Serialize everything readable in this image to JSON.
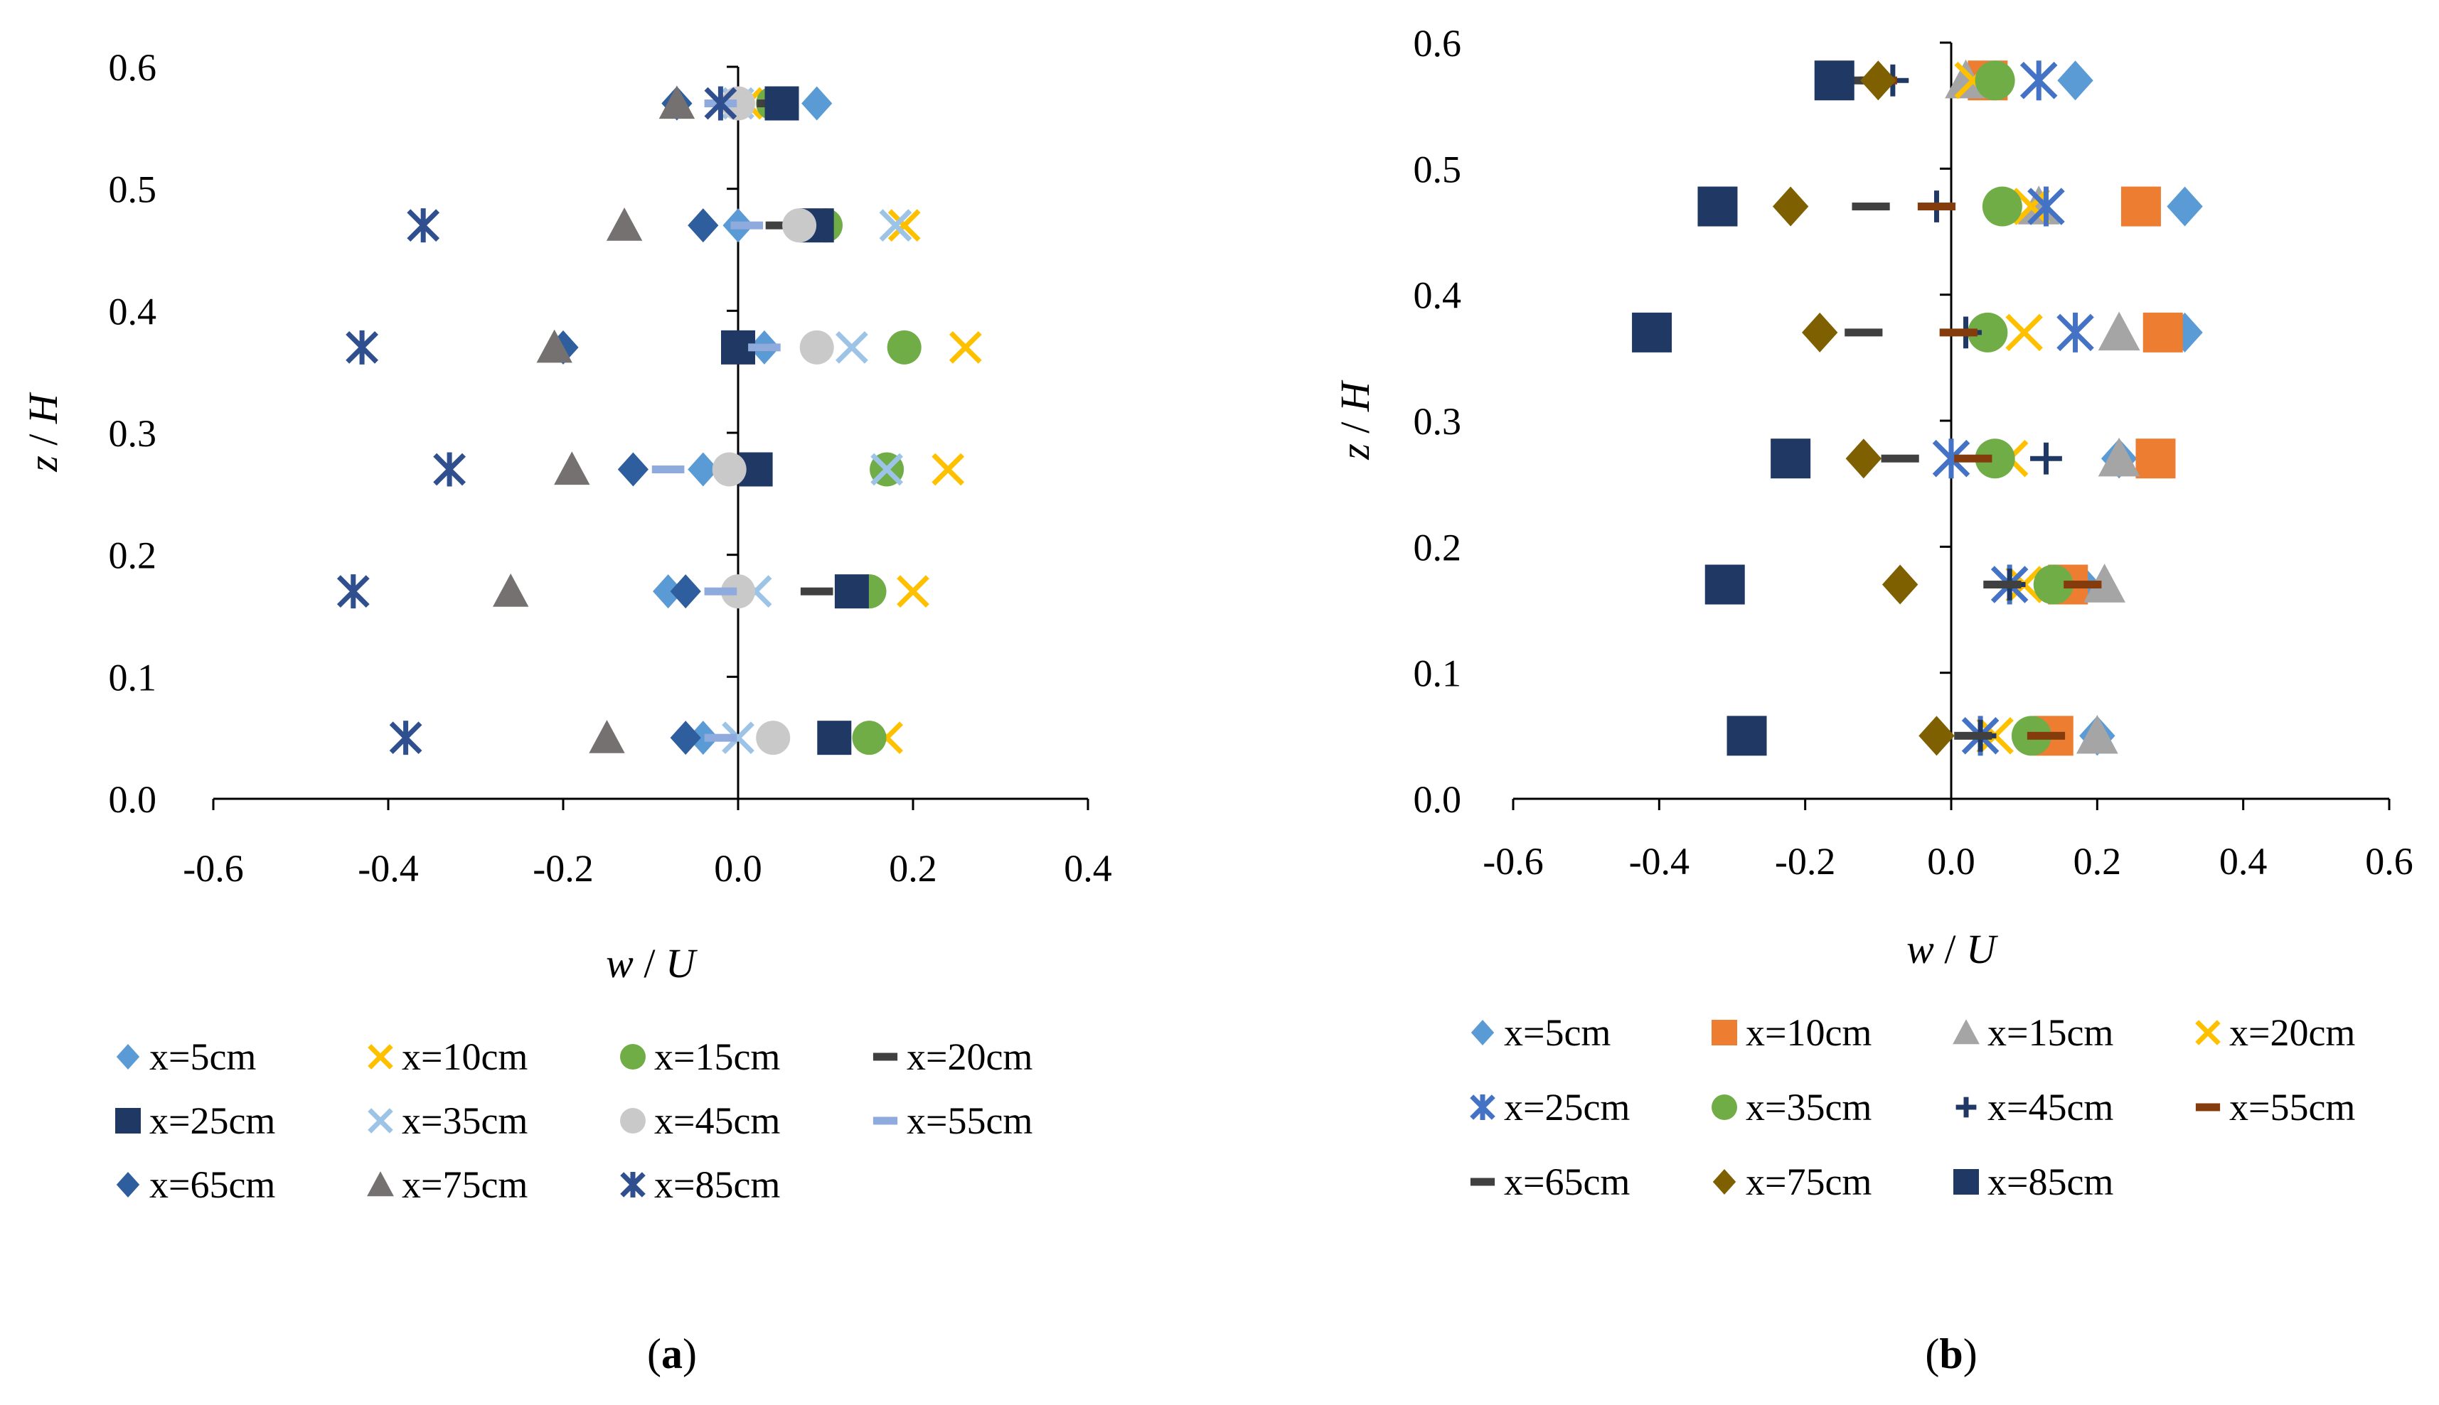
{
  "chart_data": [
    {
      "type": "scatter",
      "panel": "a",
      "panel_label": "a",
      "xlabel_var": "w",
      "xlabel_den": "U",
      "ylabel_var": "z",
      "ylabel_den": "H",
      "xlim": [
        -0.6,
        0.4
      ],
      "ylim": [
        0.0,
        0.6
      ],
      "xticks": [
        "-0.6",
        "-0.4",
        "-0.2",
        "0.0",
        "0.2",
        "0.4"
      ],
      "yticks": [
        "0.0",
        "0.1",
        "0.2",
        "0.3",
        "0.4",
        "0.5",
        "0.6"
      ],
      "legend_position": "bottom",
      "legend_columns": 4,
      "series": [
        {
          "name": "x=5cm",
          "marker": "diamond",
          "color": "#5B9BD5",
          "points": [
            [
              -0.04,
              0.05
            ],
            [
              -0.08,
              0.17
            ],
            [
              -0.04,
              0.27
            ],
            [
              0.03,
              0.37
            ],
            [
              0.0,
              0.47
            ],
            [
              0.09,
              0.57
            ]
          ]
        },
        {
          "name": "x=10cm",
          "marker": "x",
          "color": "#FFC000",
          "points": [
            [
              0.17,
              0.05
            ],
            [
              0.2,
              0.17
            ],
            [
              0.24,
              0.27
            ],
            [
              0.26,
              0.37
            ],
            [
              0.19,
              0.47
            ],
            [
              0.01,
              0.57
            ]
          ]
        },
        {
          "name": "x=15cm",
          "marker": "circle",
          "color": "#70AD47",
          "points": [
            [
              0.15,
              0.05
            ],
            [
              0.15,
              0.17
            ],
            [
              0.17,
              0.27
            ],
            [
              0.19,
              0.37
            ],
            [
              0.1,
              0.47
            ],
            [
              0.04,
              0.57
            ]
          ]
        },
        {
          "name": "x=20cm",
          "marker": "dash",
          "color": "#404040",
          "points": [
            [
              0.11,
              0.05
            ],
            [
              0.09,
              0.17
            ],
            [
              0.02,
              0.27
            ],
            [
              0.02,
              0.37
            ],
            [
              0.05,
              0.47
            ],
            [
              0.04,
              0.57
            ]
          ]
        },
        {
          "name": "x=25cm",
          "marker": "square",
          "color": "#203864",
          "points": [
            [
              0.11,
              0.05
            ],
            [
              0.13,
              0.17
            ],
            [
              0.02,
              0.27
            ],
            [
              0.0,
              0.37
            ],
            [
              0.09,
              0.47
            ],
            [
              0.05,
              0.57
            ]
          ]
        },
        {
          "name": "x=35cm",
          "marker": "x",
          "color": "#9DC3E6",
          "points": [
            [
              0.0,
              0.05
            ],
            [
              0.02,
              0.17
            ],
            [
              0.17,
              0.27
            ],
            [
              0.13,
              0.37
            ],
            [
              0.18,
              0.47
            ],
            [
              0.0,
              0.57
            ]
          ]
        },
        {
          "name": "x=45cm",
          "marker": "circle",
          "color": "#C9C9C9",
          "points": [
            [
              0.04,
              0.05
            ],
            [
              0.0,
              0.17
            ],
            [
              -0.01,
              0.27
            ],
            [
              0.09,
              0.37
            ],
            [
              0.07,
              0.47
            ],
            [
              0.0,
              0.57
            ]
          ]
        },
        {
          "name": "x=55cm",
          "marker": "dash",
          "color": "#8FAADC",
          "points": [
            [
              -0.02,
              0.05
            ],
            [
              -0.02,
              0.17
            ],
            [
              -0.08,
              0.27
            ],
            [
              0.03,
              0.37
            ],
            [
              0.01,
              0.47
            ],
            [
              -0.02,
              0.57
            ]
          ]
        },
        {
          "name": "x=65cm",
          "marker": "diamond",
          "color": "#2E5E9E",
          "points": [
            [
              -0.06,
              0.05
            ],
            [
              -0.06,
              0.17
            ],
            [
              -0.12,
              0.27
            ],
            [
              -0.2,
              0.37
            ],
            [
              -0.04,
              0.47
            ],
            [
              -0.07,
              0.57
            ]
          ]
        },
        {
          "name": "x=75cm",
          "marker": "triangle",
          "color": "#767171",
          "points": [
            [
              -0.15,
              0.05
            ],
            [
              -0.26,
              0.17
            ],
            [
              -0.19,
              0.27
            ],
            [
              -0.21,
              0.37
            ],
            [
              -0.13,
              0.47
            ],
            [
              -0.07,
              0.57
            ]
          ]
        },
        {
          "name": "x=85cm",
          "marker": "asterisk",
          "color": "#2F4F8F",
          "points": [
            [
              -0.38,
              0.05
            ],
            [
              -0.44,
              0.17
            ],
            [
              -0.33,
              0.27
            ],
            [
              -0.43,
              0.37
            ],
            [
              -0.36,
              0.47
            ],
            [
              -0.02,
              0.57
            ]
          ]
        }
      ]
    },
    {
      "type": "scatter",
      "panel": "b",
      "panel_label": "b",
      "xlabel_var": "w",
      "xlabel_den": "U",
      "ylabel_var": "z",
      "ylabel_den": "H",
      "xlim": [
        -0.6,
        0.6
      ],
      "ylim": [
        0.0,
        0.6
      ],
      "xticks": [
        "-0.6",
        "-0.4",
        "-0.2",
        "0.0",
        "0.2",
        "0.4",
        "0.6"
      ],
      "yticks": [
        "0.0",
        "0.1",
        "0.2",
        "0.3",
        "0.4",
        "0.5",
        "0.6"
      ],
      "legend_position": "bottom",
      "legend_columns": 4,
      "series": [
        {
          "name": "x=5cm",
          "marker": "diamond",
          "color": "#5B9BD5",
          "points": [
            [
              0.2,
              0.05
            ],
            [
              0.18,
              0.17
            ],
            [
              0.23,
              0.27
            ],
            [
              0.32,
              0.37
            ],
            [
              0.32,
              0.47
            ],
            [
              0.17,
              0.57
            ]
          ]
        },
        {
          "name": "x=10cm",
          "marker": "square",
          "color": "#ED7D31",
          "points": [
            [
              0.14,
              0.05
            ],
            [
              0.16,
              0.17
            ],
            [
              0.28,
              0.27
            ],
            [
              0.29,
              0.37
            ],
            [
              0.26,
              0.47
            ],
            [
              0.05,
              0.57
            ]
          ]
        },
        {
          "name": "x=15cm",
          "marker": "triangle",
          "color": "#A5A5A5",
          "points": [
            [
              0.2,
              0.05
            ],
            [
              0.21,
              0.17
            ],
            [
              0.23,
              0.27
            ],
            [
              0.23,
              0.37
            ],
            [
              0.12,
              0.47
            ],
            [
              0.02,
              0.57
            ]
          ]
        },
        {
          "name": "x=20cm",
          "marker": "x",
          "color": "#FFC000",
          "points": [
            [
              0.06,
              0.05
            ],
            [
              0.1,
              0.17
            ],
            [
              0.08,
              0.27
            ],
            [
              0.1,
              0.37
            ],
            [
              0.11,
              0.47
            ],
            [
              0.03,
              0.57
            ]
          ]
        },
        {
          "name": "x=25cm",
          "marker": "asterisk",
          "color": "#4472C4",
          "points": [
            [
              0.04,
              0.05
            ],
            [
              0.08,
              0.17
            ],
            [
              0.0,
              0.27
            ],
            [
              0.17,
              0.37
            ],
            [
              0.13,
              0.47
            ],
            [
              0.12,
              0.57
            ]
          ]
        },
        {
          "name": "x=35cm",
          "marker": "circle",
          "color": "#70AD47",
          "points": [
            [
              0.11,
              0.05
            ],
            [
              0.14,
              0.17
            ],
            [
              0.06,
              0.27
            ],
            [
              0.05,
              0.37
            ],
            [
              0.07,
              0.47
            ],
            [
              0.06,
              0.57
            ]
          ]
        },
        {
          "name": "x=45cm",
          "marker": "plus",
          "color": "#1F3864",
          "points": [
            [
              0.04,
              0.05
            ],
            [
              0.08,
              0.17
            ],
            [
              0.13,
              0.27
            ],
            [
              0.02,
              0.37
            ],
            [
              -0.02,
              0.47
            ],
            [
              -0.08,
              0.57
            ]
          ]
        },
        {
          "name": "x=55cm",
          "marker": "dash",
          "color": "#843C0C",
          "points": [
            [
              0.13,
              0.05
            ],
            [
              0.18,
              0.17
            ],
            [
              0.03,
              0.27
            ],
            [
              0.01,
              0.37
            ],
            [
              -0.02,
              0.47
            ],
            [
              -0.1,
              0.57
            ]
          ]
        },
        {
          "name": "x=65cm",
          "marker": "dash",
          "color": "#404040",
          "points": [
            [
              0.03,
              0.05
            ],
            [
              0.07,
              0.17
            ],
            [
              -0.07,
              0.27
            ],
            [
              -0.12,
              0.37
            ],
            [
              -0.11,
              0.47
            ],
            [
              -0.12,
              0.57
            ]
          ]
        },
        {
          "name": "x=75cm",
          "marker": "diamond",
          "color": "#7F6000",
          "points": [
            [
              -0.02,
              0.05
            ],
            [
              -0.07,
              0.17
            ],
            [
              -0.12,
              0.27
            ],
            [
              -0.18,
              0.37
            ],
            [
              -0.22,
              0.47
            ],
            [
              -0.1,
              0.57
            ]
          ]
        },
        {
          "name": "x=85cm",
          "marker": "square",
          "color": "#203864",
          "points": [
            [
              -0.28,
              0.05
            ],
            [
              -0.31,
              0.17
            ],
            [
              -0.22,
              0.27
            ],
            [
              -0.41,
              0.37
            ],
            [
              -0.32,
              0.47
            ],
            [
              -0.16,
              0.57
            ]
          ]
        }
      ]
    }
  ]
}
